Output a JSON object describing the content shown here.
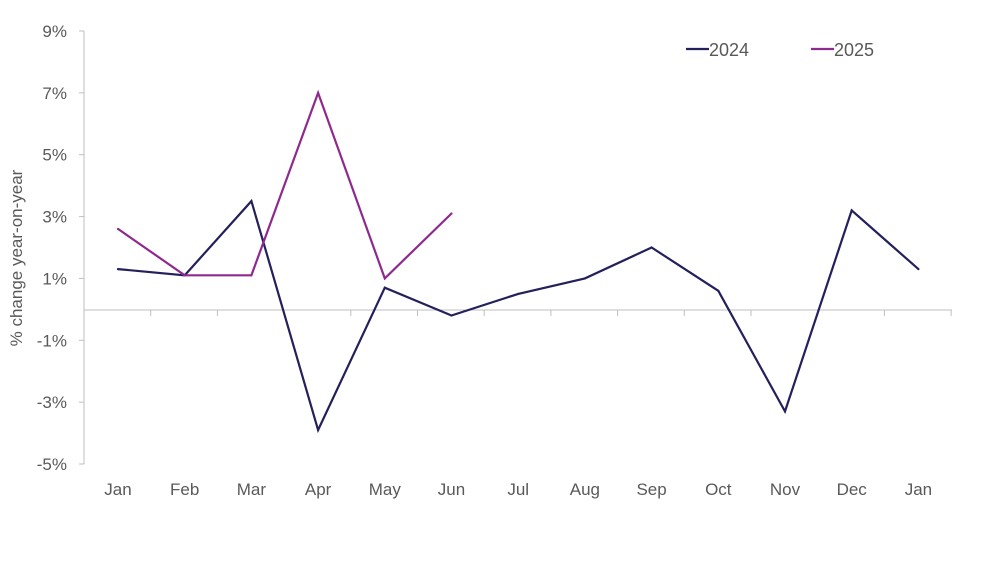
{
  "chart_data": {
    "type": "line",
    "title": "",
    "xlabel": "",
    "ylabel": "% change year-on-year",
    "categories": [
      "Jan",
      "Feb",
      "Mar",
      "Apr",
      "May",
      "Jun",
      "Jul",
      "Aug",
      "Sep",
      "Oct",
      "Nov",
      "Dec",
      "Jan"
    ],
    "ylim": [
      -5,
      9
    ],
    "yticks": [
      9,
      7,
      5,
      3,
      1,
      -1,
      -3,
      -5
    ],
    "ytick_labels": [
      "9%",
      "7%",
      "5%",
      "3%",
      "1%",
      "-1%",
      "-3%",
      "-5%"
    ],
    "grid": false,
    "legend_position": "top-right",
    "series": [
      {
        "name": "2024",
        "color": "#23205c",
        "values": [
          1.3,
          1.1,
          3.5,
          -3.9,
          0.7,
          -0.2,
          0.5,
          1.0,
          2.0,
          0.6,
          -3.3,
          3.2,
          1.3
        ]
      },
      {
        "name": "2025",
        "color": "#8e2a8e",
        "values": [
          2.6,
          1.1,
          1.1,
          7.0,
          1.0,
          3.1,
          null,
          null,
          null,
          null,
          null,
          null,
          null
        ]
      }
    ]
  }
}
